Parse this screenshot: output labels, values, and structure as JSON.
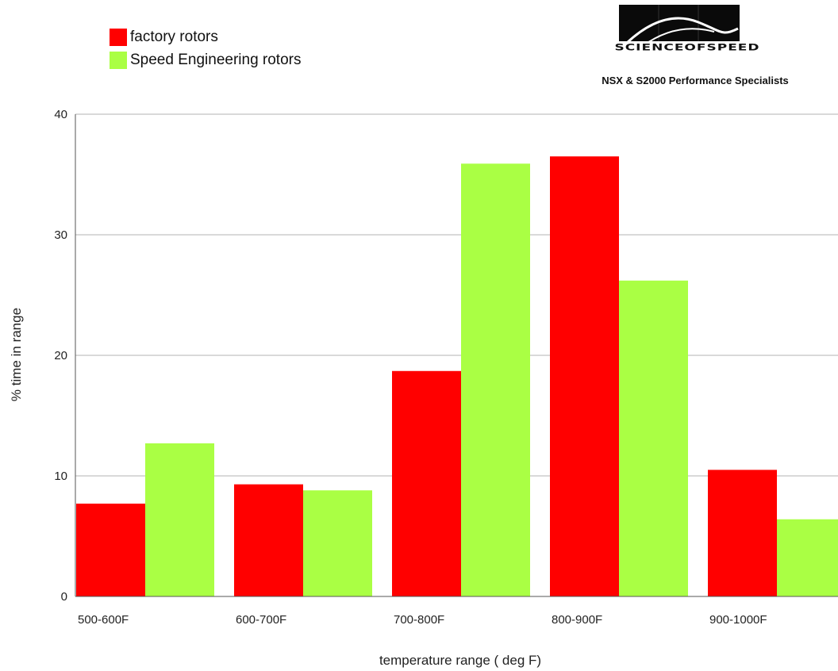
{
  "logo": {
    "wordmark": "SCIENCEOFSPEED",
    "tagline": "NSX & S2000 Performance Specialists"
  },
  "colors": {
    "factory": "#ff0000",
    "speed": "#aaff44",
    "grid": "#b3b3b3",
    "axis": "#555555"
  },
  "chart_data": {
    "type": "bar",
    "xlabel": "temperature range ( deg F)",
    "ylabel": "% time in range",
    "ylim": [
      0,
      40
    ],
    "yticks": [
      "0",
      "10",
      "20",
      "30",
      "40"
    ],
    "grid": true,
    "legend_position": "top-left",
    "categories": [
      "500-600F",
      "600-700F",
      "700-800F",
      "800-900F",
      "900-1000F"
    ],
    "series": [
      {
        "name": "factory rotors",
        "values": [
          7.7,
          9.3,
          18.7,
          36.5,
          10.5
        ]
      },
      {
        "name": "Speed Engineering rotors",
        "values": [
          12.7,
          8.8,
          35.9,
          26.2,
          6.4
        ]
      }
    ]
  }
}
